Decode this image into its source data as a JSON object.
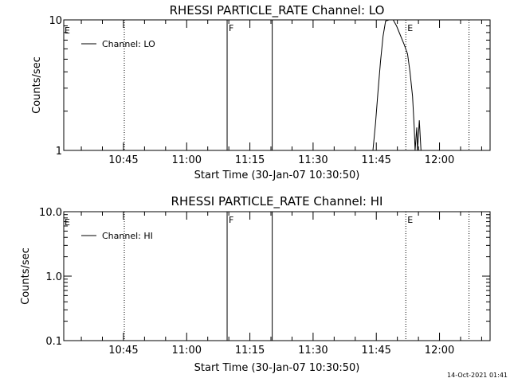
{
  "page": {
    "timestamp": "14-Oct-2021 01:41"
  },
  "chart_data": [
    {
      "type": "line",
      "title": "RHESSI PARTICLE_RATE Channel: LO",
      "xlabel": "Start Time (30-Jan-07 10:30:50)",
      "ylabel": "Counts/sec",
      "yscale": "log",
      "ylim": [
        1,
        10
      ],
      "xlim_minutes_after_1030": [
        0.83,
        102
      ],
      "ytick_labels": [
        {
          "value": 1,
          "label": "1"
        },
        {
          "value": 10,
          "label": "10"
        }
      ],
      "xtick_labels": [
        {
          "value": 15,
          "label": "10:45"
        },
        {
          "value": 30,
          "label": "11:00"
        },
        {
          "value": 45,
          "label": "11:15"
        },
        {
          "value": 60,
          "label": "11:30"
        },
        {
          "value": 75,
          "label": "11:45"
        },
        {
          "value": 90,
          "label": "12:00"
        }
      ],
      "legend": {
        "position": "top-left",
        "entries": [
          "Channel: LO"
        ]
      },
      "vlines": [
        {
          "x": 15.2,
          "style": "dotted",
          "label": ""
        },
        {
          "x": 39.6,
          "style": "solid",
          "label": "F"
        },
        {
          "x": 50.3,
          "style": "solid",
          "label": ""
        },
        {
          "x": 82.0,
          "style": "dotted",
          "label": "E"
        },
        {
          "x": 97.0,
          "style": "dotted",
          "label": ""
        }
      ],
      "edge_labels": [
        {
          "x": 0.83,
          "label": "E"
        }
      ],
      "series": [
        {
          "name": "Channel: LO",
          "points": [
            [
              74.2,
              1
            ],
            [
              74.8,
              1.6
            ],
            [
              75.4,
              2.8
            ],
            [
              76.0,
              4.8
            ],
            [
              76.6,
              7.5
            ],
            [
              77.2,
              9.8
            ],
            [
              78.0,
              10
            ],
            [
              79.0,
              10
            ],
            [
              79.8,
              9.0
            ],
            [
              80.8,
              7.5
            ],
            [
              81.6,
              6.5
            ],
            [
              82.4,
              5.5
            ],
            [
              83.0,
              4.0
            ],
            [
              83.6,
              2.6
            ],
            [
              84.0,
              1.5
            ],
            [
              84.2,
              1
            ],
            [
              84.6,
              1.5
            ],
            [
              84.8,
              1
            ],
            [
              85.2,
              1.7
            ],
            [
              85.6,
              1
            ]
          ]
        }
      ]
    },
    {
      "type": "line",
      "title": "RHESSI PARTICLE_RATE Channel: HI",
      "xlabel": "Start Time (30-Jan-07 10:30:50)",
      "ylabel": "Counts/sec",
      "yscale": "log",
      "ylim": [
        0.1,
        10
      ],
      "xlim_minutes_after_1030": [
        0.83,
        102
      ],
      "ytick_labels": [
        {
          "value": 0.1,
          "label": "0.1"
        },
        {
          "value": 1,
          "label": "1.0"
        },
        {
          "value": 10,
          "label": "10.0"
        }
      ],
      "xtick_labels": [
        {
          "value": 15,
          "label": "10:45"
        },
        {
          "value": 30,
          "label": "11:00"
        },
        {
          "value": 45,
          "label": "11:15"
        },
        {
          "value": 60,
          "label": "11:30"
        },
        {
          "value": 75,
          "label": "11:45"
        },
        {
          "value": 90,
          "label": "12:00"
        }
      ],
      "legend": {
        "position": "top-left",
        "entries": [
          "Channel: HI"
        ]
      },
      "vlines": [
        {
          "x": 15.2,
          "style": "dotted",
          "label": ""
        },
        {
          "x": 39.6,
          "style": "solid",
          "label": "F"
        },
        {
          "x": 50.3,
          "style": "solid",
          "label": ""
        },
        {
          "x": 82.0,
          "style": "dotted",
          "label": "E"
        },
        {
          "x": 97.0,
          "style": "dotted",
          "label": ""
        }
      ],
      "edge_labels": [
        {
          "x": 0.83,
          "label": "E"
        }
      ],
      "series": [
        {
          "name": "Channel: HI",
          "points": []
        }
      ]
    }
  ]
}
